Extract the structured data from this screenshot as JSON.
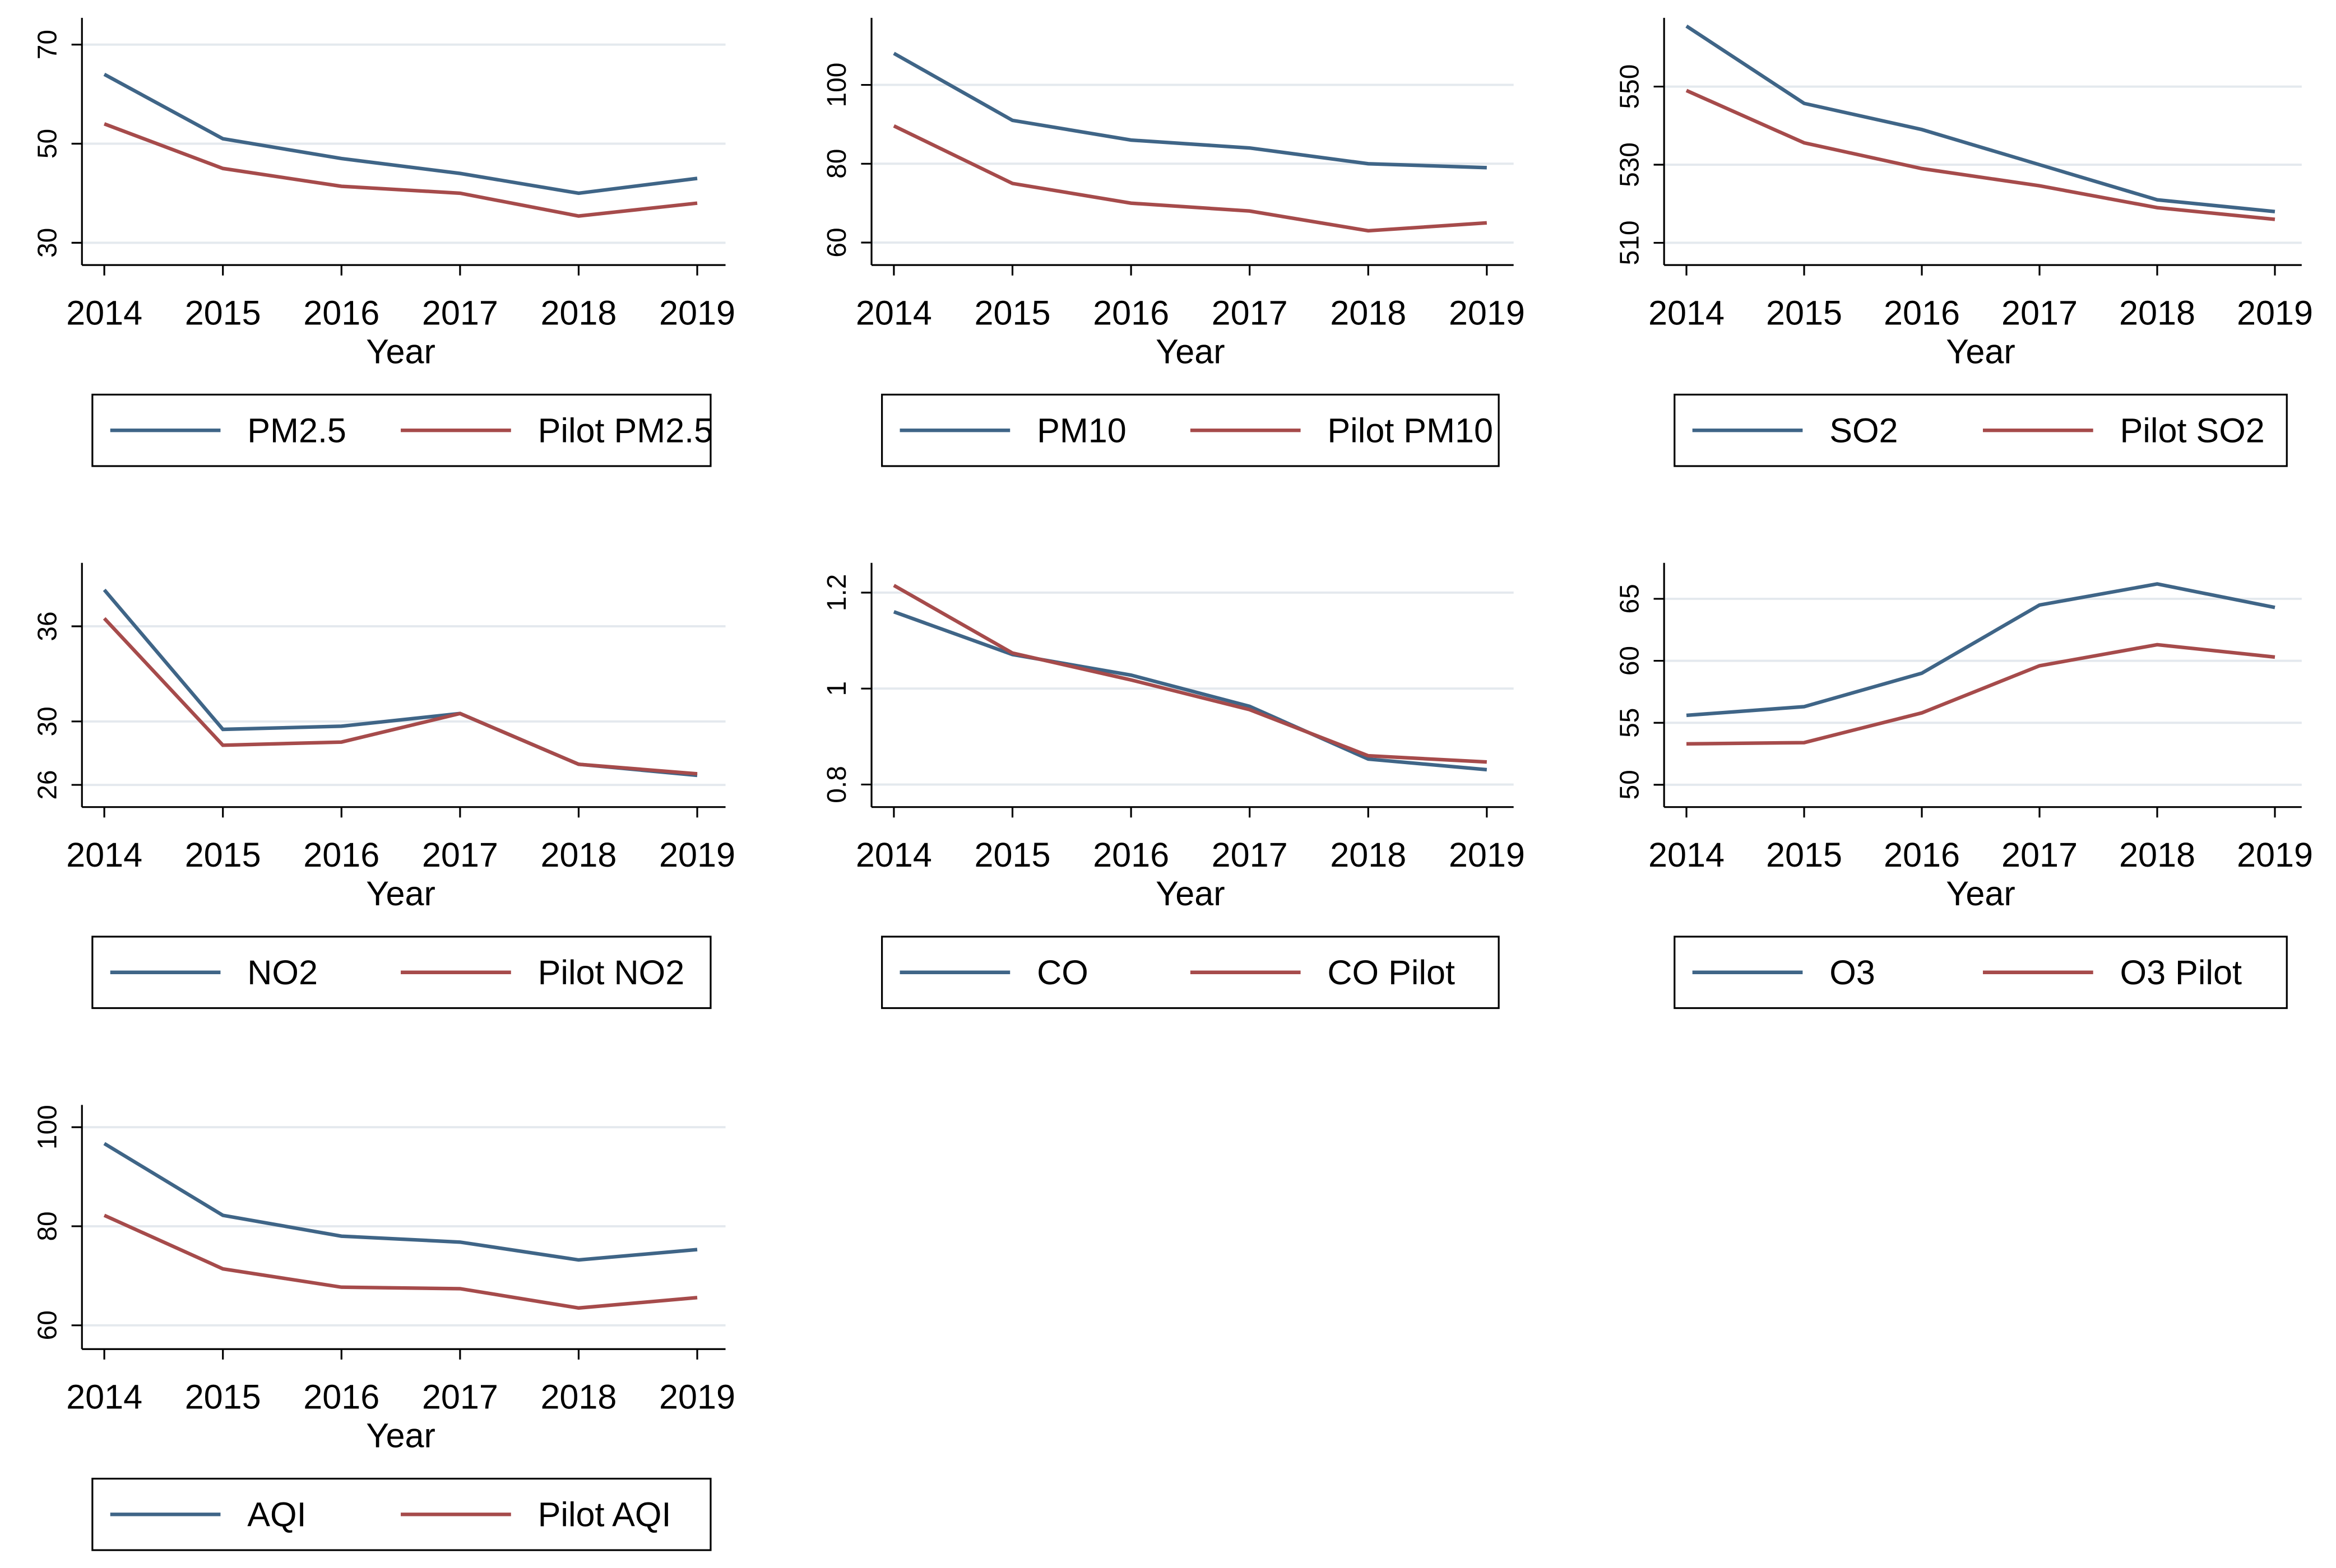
{
  "chart_data": [
    {
      "type": "line",
      "x_label": "Year",
      "categories": [
        2014,
        2015,
        2016,
        2017,
        2018,
        2019
      ],
      "series": [
        {
          "name": "PM2.5",
          "color": "#3f6587",
          "values": [
            64,
            51,
            47,
            44,
            40,
            43
          ]
        },
        {
          "name": "Pilot PM2.5",
          "color": "#a64b4b",
          "values": [
            54,
            45,
            41.4,
            40,
            35.4,
            38
          ]
        }
      ],
      "ylim": [
        25.5,
        75.4
      ],
      "yticks": [
        30,
        50,
        70
      ],
      "grid": true
    },
    {
      "type": "line",
      "x_label": "Year",
      "categories": [
        2014,
        2015,
        2016,
        2017,
        2018,
        2019
      ],
      "series": [
        {
          "name": "PM10",
          "color": "#3f6587",
          "values": [
            108,
            91,
            86,
            84,
            80,
            79
          ]
        },
        {
          "name": "Pilot PM10",
          "color": "#a64b4b",
          "values": [
            89.6,
            75,
            70,
            68,
            63,
            65
          ]
        }
      ],
      "ylim": [
        54.3,
        117
      ],
      "yticks": [
        60,
        80,
        100
      ],
      "grid": true
    },
    {
      "type": "line",
      "x_label": "Year",
      "categories": [
        2014,
        2015,
        2016,
        2017,
        2018,
        2019
      ],
      "series": [
        {
          "name": "SO2",
          "color": "#3f6587",
          "values": [
            565.5,
            545.7,
            539,
            530,
            521,
            518
          ]
        },
        {
          "name": "Pilot SO2",
          "color": "#a64b4b",
          "values": [
            549,
            535.6,
            529,
            524.6,
            519,
            516
          ]
        }
      ],
      "ylim": [
        504.3,
        567.6
      ],
      "yticks": [
        510,
        530,
        550
      ],
      "grid": true
    },
    {
      "type": "line",
      "x_label": "Year",
      "categories": [
        2014,
        2015,
        2016,
        2017,
        2018,
        2019
      ],
      "series": [
        {
          "name": "NO2",
          "color": "#3f6587",
          "values": [
            38.3,
            29.5,
            29.7,
            30.5,
            27.3,
            26.6
          ]
        },
        {
          "name": "Pilot NO2",
          "color": "#a64b4b",
          "values": [
            36.5,
            28.5,
            28.7,
            30.5,
            27.3,
            26.7
          ]
        }
      ],
      "ylim": [
        24.6,
        40
      ],
      "yticks": [
        26,
        30,
        36
      ],
      "grid": true
    },
    {
      "type": "line",
      "x_label": "Year",
      "categories": [
        2014,
        2015,
        2016,
        2017,
        2018,
        2019
      ],
      "series": [
        {
          "name": "CO",
          "color": "#3f6587",
          "values": [
            1.16,
            1.071,
            1.028,
            0.963,
            0.853,
            0.831
          ]
        },
        {
          "name": "CO Pilot",
          "color": "#a64b4b",
          "values": [
            1.215,
            1.074,
            1.018,
            0.956,
            0.86,
            0.847
          ]
        }
      ],
      "ylim": [
        0.753,
        1.262
      ],
      "yticks": [
        0.8,
        1,
        1.2
      ],
      "grid": true
    },
    {
      "type": "line",
      "x_label": "Year",
      "categories": [
        2014,
        2015,
        2016,
        2017,
        2018,
        2019
      ],
      "series": [
        {
          "name": "O3",
          "color": "#3f6587",
          "values": [
            55.6,
            56.3,
            59,
            64.5,
            66.2,
            64.3
          ]
        },
        {
          "name": "O3 Pilot",
          "color": "#a64b4b",
          "values": [
            53.3,
            53.4,
            55.8,
            59.6,
            61.3,
            60.3
          ]
        }
      ],
      "ylim": [
        48.2,
        67.9
      ],
      "yticks": [
        50,
        55,
        60,
        65
      ],
      "grid": true
    },
    {
      "type": "line",
      "x_label": "Year",
      "categories": [
        2014,
        2015,
        2016,
        2017,
        2018,
        2019
      ],
      "series": [
        {
          "name": "AQI",
          "color": "#3f6587",
          "values": [
            96.7,
            82.2,
            78,
            76.8,
            73.2,
            75.3
          ]
        },
        {
          "name": "Pilot AQI",
          "color": "#a64b4b",
          "values": [
            82.2,
            71.4,
            67.7,
            67.4,
            63.5,
            65.6
          ]
        }
      ],
      "ylim": [
        55.2,
        104.5
      ],
      "yticks": [
        60,
        80,
        100
      ],
      "grid": true
    }
  ]
}
